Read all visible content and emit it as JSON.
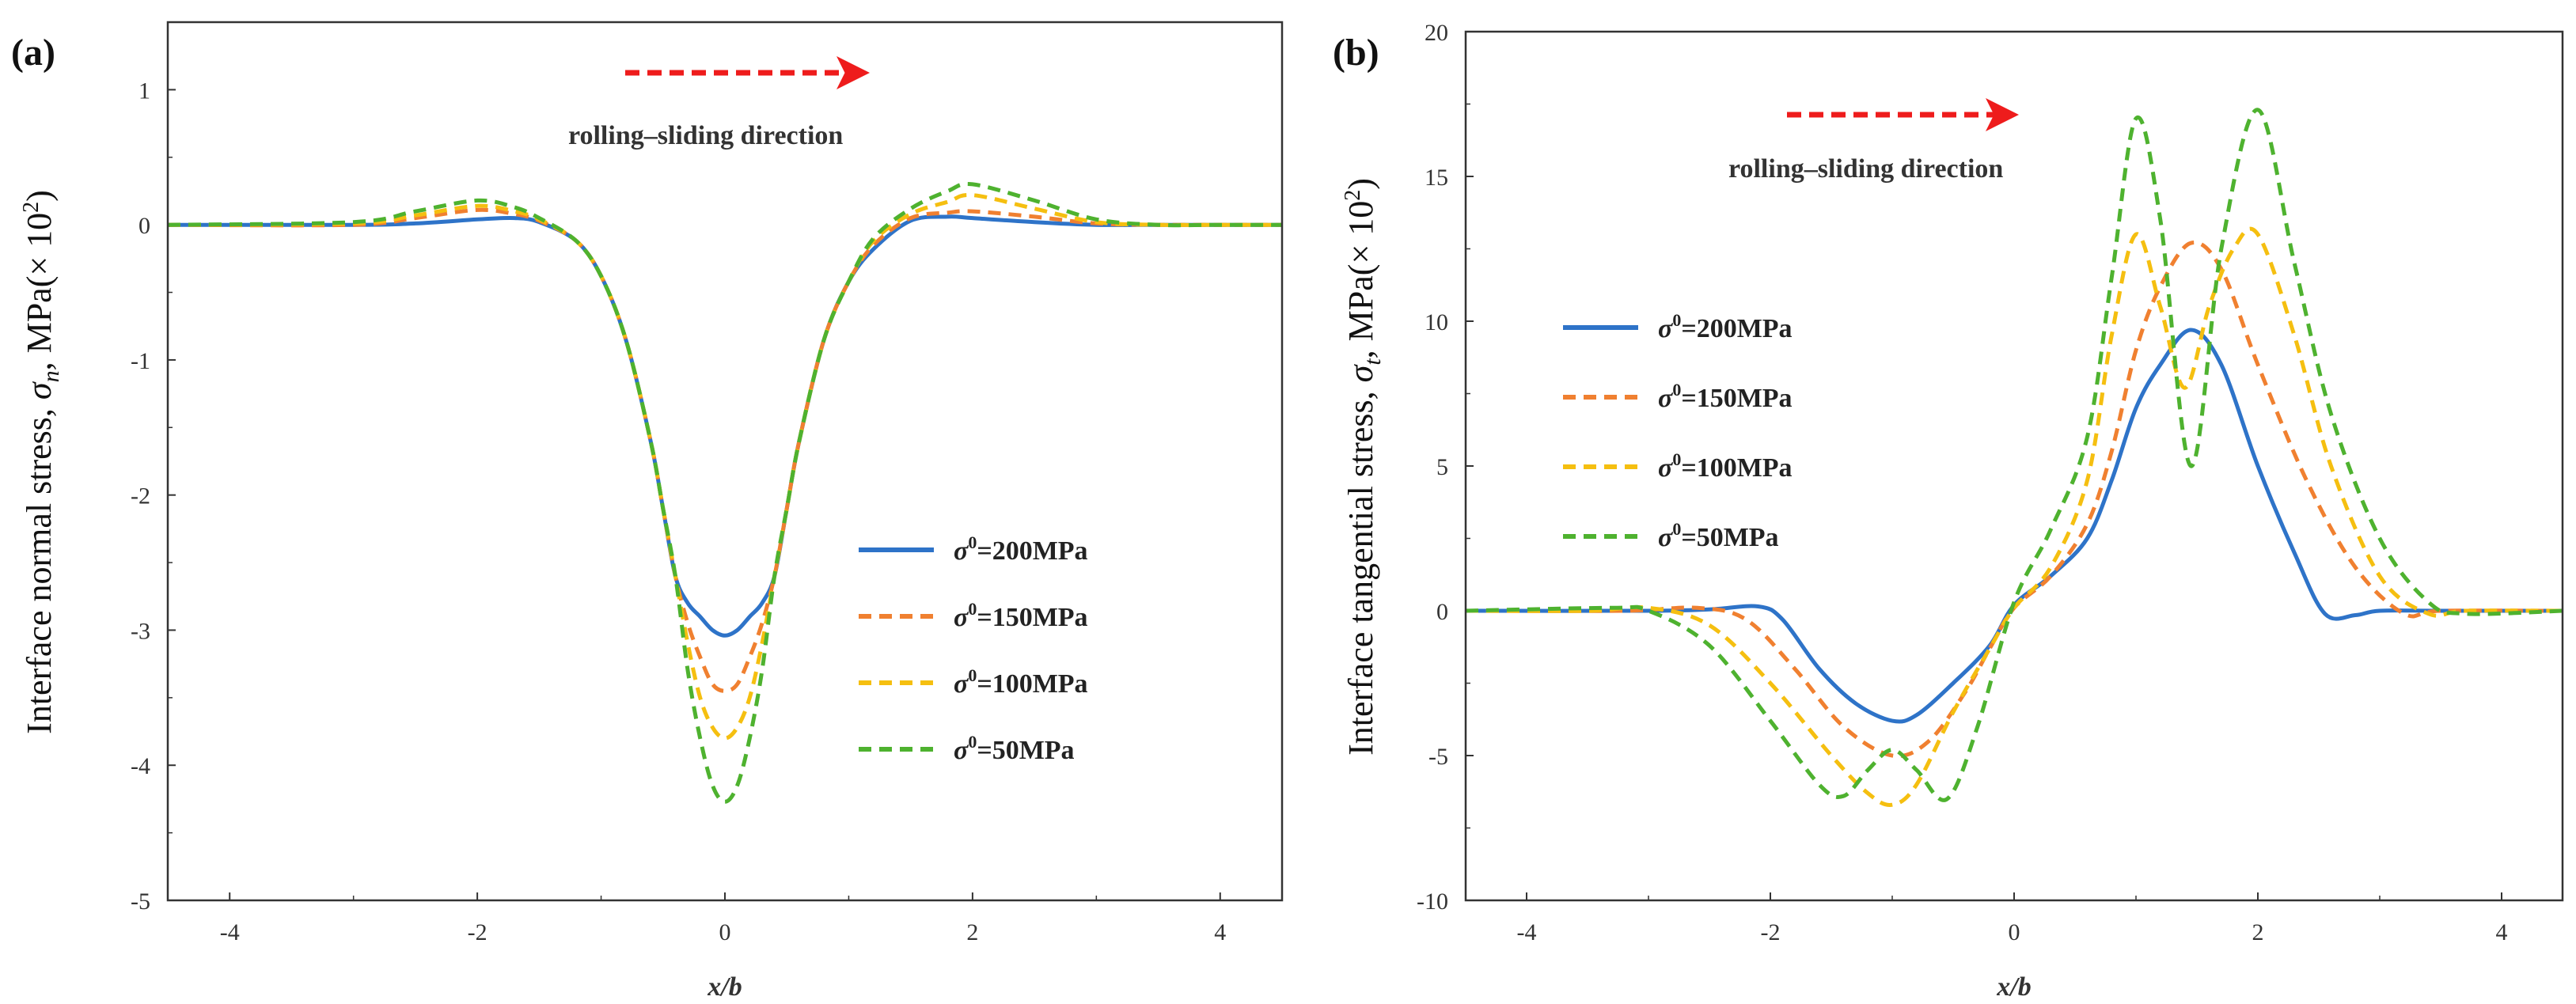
{
  "colors": {
    "s200": "#2E73C8",
    "s150": "#F08030",
    "s100": "#F5BF10",
    "s50": "#4EB22F",
    "arrow": "#EE1C1C",
    "axis": "#333333"
  },
  "chart_data": [
    {
      "type": "line",
      "panel_label": "(a)",
      "title": "",
      "xlabel": "x/b",
      "ylabel": "Interface normal stress,  σn,  MPa(× 10²)",
      "ylabel_parts": {
        "pre": "Interface normal stress,  ",
        "sym": "σ",
        "sub": "n",
        "post": ",  MPa(× 10",
        "exp": "2",
        "close": ")"
      },
      "xlim": [
        -4.5,
        4.5
      ],
      "ylim": [
        -5,
        1.5
      ],
      "xticks": [
        "-4",
        "-2",
        "0",
        "2",
        "4"
      ],
      "xtick_values": [
        -4,
        -2,
        0,
        2,
        4
      ],
      "yticks": [
        "-5",
        "-4",
        "-3",
        "-2",
        "-1",
        "0",
        "1"
      ],
      "ytick_values": [
        -5,
        -4,
        -3,
        -2,
        -1,
        0,
        1
      ],
      "annotation": "rolling–sliding direction",
      "legend_position": "center-right",
      "series": [
        {
          "name": "σ0=200MPa",
          "name_parts": [
            "σ",
            "0",
            "=200MPa"
          ],
          "color_key": "s200",
          "dash": "solid",
          "x": [
            -4.5,
            -3,
            -2.5,
            -2,
            -1.7,
            -1.5,
            -1.2,
            -1,
            -0.8,
            -0.6,
            -0.5,
            -0.4,
            -0.3,
            -0.2,
            -0.1,
            0,
            0.1,
            0.2,
            0.3,
            0.4,
            0.5,
            0.6,
            0.8,
            1,
            1.2,
            1.5,
            1.8,
            2,
            2.5,
            3,
            3.5,
            4,
            4.5
          ],
          "y": [
            0,
            0,
            0.01,
            0.04,
            0.05,
            0.02,
            -0.12,
            -0.38,
            -0.85,
            -1.6,
            -2.1,
            -2.6,
            -2.8,
            -2.9,
            -3.0,
            -3.04,
            -3.0,
            -2.9,
            -2.8,
            -2.6,
            -2.1,
            -1.6,
            -0.85,
            -0.42,
            -0.18,
            0.03,
            0.06,
            0.05,
            0.02,
            0,
            0,
            0,
            0
          ]
        },
        {
          "name": "σ0=150MPa",
          "name_parts": [
            "σ",
            "0",
            "=150MPa"
          ],
          "color_key": "s150",
          "dash": "dashed",
          "x": [
            -4.5,
            -3,
            -2.5,
            -2,
            -1.7,
            -1.5,
            -1.2,
            -1,
            -0.8,
            -0.6,
            -0.5,
            -0.4,
            -0.3,
            -0.2,
            -0.1,
            0,
            0.1,
            0.2,
            0.3,
            0.4,
            0.5,
            0.6,
            0.8,
            1,
            1.2,
            1.5,
            1.8,
            2,
            2.5,
            3,
            3.5,
            4,
            4.5
          ],
          "y": [
            0,
            0,
            0.05,
            0.11,
            0.08,
            0.03,
            -0.12,
            -0.38,
            -0.85,
            -1.6,
            -2.1,
            -2.6,
            -2.95,
            -3.2,
            -3.4,
            -3.45,
            -3.4,
            -3.2,
            -2.95,
            -2.6,
            -2.1,
            -1.6,
            -0.85,
            -0.42,
            -0.15,
            0.05,
            0.09,
            0.1,
            0.06,
            0.01,
            0,
            0,
            0
          ]
        },
        {
          "name": "σ0=100MPa",
          "name_parts": [
            "σ",
            "0",
            "=100MPa"
          ],
          "color_key": "s100",
          "dash": "dashed",
          "x": [
            -4.5,
            -3,
            -2.5,
            -2,
            -1.7,
            -1.5,
            -1.2,
            -1,
            -0.8,
            -0.6,
            -0.5,
            -0.4,
            -0.3,
            -0.2,
            -0.1,
            0,
            0.1,
            0.2,
            0.3,
            0.4,
            0.5,
            0.6,
            0.8,
            1,
            1.2,
            1.5,
            1.8,
            2,
            2.5,
            3,
            3.5,
            4,
            4.5
          ],
          "y": [
            0,
            0.01,
            0.07,
            0.14,
            0.1,
            0.04,
            -0.12,
            -0.38,
            -0.85,
            -1.6,
            -2.1,
            -2.6,
            -3.1,
            -3.5,
            -3.72,
            -3.8,
            -3.72,
            -3.5,
            -3.1,
            -2.6,
            -2.1,
            -1.6,
            -0.85,
            -0.42,
            -0.12,
            0.08,
            0.17,
            0.22,
            0.12,
            0.02,
            0,
            0,
            0
          ]
        },
        {
          "name": "σ0=50MPa",
          "name_parts": [
            "σ",
            "0",
            "=50MPa"
          ],
          "color_key": "s50",
          "dash": "dashed",
          "x": [
            -4.5,
            -3,
            -2.5,
            -2,
            -1.7,
            -1.5,
            -1.2,
            -1,
            -0.8,
            -0.6,
            -0.5,
            -0.4,
            -0.3,
            -0.2,
            -0.1,
            0,
            0.1,
            0.2,
            0.3,
            0.4,
            0.5,
            0.6,
            0.8,
            1,
            1.2,
            1.5,
            1.8,
            2,
            2.5,
            3,
            3.5,
            4,
            4.5
          ],
          "y": [
            0,
            0.02,
            0.1,
            0.18,
            0.13,
            0.05,
            -0.12,
            -0.38,
            -0.85,
            -1.6,
            -2.1,
            -2.6,
            -3.3,
            -3.8,
            -4.15,
            -4.27,
            -4.15,
            -3.8,
            -3.3,
            -2.6,
            -2.1,
            -1.6,
            -0.85,
            -0.42,
            -0.1,
            0.12,
            0.25,
            0.3,
            0.18,
            0.04,
            0,
            0,
            0
          ]
        }
      ]
    },
    {
      "type": "line",
      "panel_label": "(b)",
      "title": "",
      "xlabel": "x/b",
      "ylabel": "Interface tangential stress,  σt,  MPa(× 10²)",
      "ylabel_parts": {
        "pre": "Interface tangential stress,  ",
        "sym": "σ",
        "sub": "t",
        "post": ",  MPa(× 10",
        "exp": "2",
        "close": ")"
      },
      "xlim": [
        -4.5,
        4.5
      ],
      "ylim": [
        -10,
        20
      ],
      "xticks": [
        "-4",
        "-2",
        "0",
        "2",
        "4"
      ],
      "xtick_values": [
        -4,
        -2,
        0,
        2,
        4
      ],
      "yticks": [
        "-10",
        "-5",
        "0",
        "5",
        "10",
        "15",
        "20"
      ],
      "ytick_values": [
        -10,
        -5,
        0,
        5,
        10,
        15,
        20
      ],
      "annotation": "rolling–sliding direction",
      "legend_position": "upper-left",
      "series": [
        {
          "name": "σ0=200MPa",
          "name_parts": [
            "σ",
            "0",
            "=200MPa"
          ],
          "color_key": "s200",
          "dash": "solid",
          "x": [
            -4.5,
            -3,
            -2.5,
            -2.1,
            -1.9,
            -1.6,
            -1.3,
            -1,
            -0.8,
            -0.5,
            -0.2,
            0,
            0.3,
            0.6,
            0.8,
            1,
            1.2,
            1.45,
            1.7,
            2,
            2.3,
            2.55,
            2.8,
            3,
            3.5,
            4.5
          ],
          "y": [
            0,
            0,
            0.05,
            0.15,
            -0.3,
            -2.0,
            -3.2,
            -3.8,
            -3.6,
            -2.5,
            -1.2,
            0.2,
            1.2,
            2.5,
            4.5,
            7.0,
            8.5,
            9.7,
            8.5,
            5.0,
            2.0,
            -0.1,
            -0.15,
            0,
            0,
            0
          ]
        },
        {
          "name": "σ0=150MPa",
          "name_parts": [
            "σ",
            "0",
            "=150MPa"
          ],
          "color_key": "s150",
          "dash": "dashed",
          "x": [
            -4.5,
            -3.2,
            -2.6,
            -2.2,
            -1.8,
            -1.4,
            -1,
            -0.7,
            -0.4,
            -0.2,
            0,
            0.3,
            0.6,
            0.8,
            1,
            1.2,
            1.45,
            1.7,
            2,
            2.4,
            2.8,
            3.2,
            3.5,
            4.5
          ],
          "y": [
            0,
            0,
            0.1,
            -0.3,
            -2.0,
            -4.0,
            -5.0,
            -4.5,
            -2.8,
            -1.3,
            0.1,
            1.2,
            3.0,
            5.5,
            9.0,
            11.2,
            12.7,
            11.8,
            8.5,
            4.5,
            1.5,
            -0.1,
            0,
            0
          ]
        },
        {
          "name": "σ0=100MPa",
          "name_parts": [
            "σ",
            "0",
            "=100MPa"
          ],
          "color_key": "s100",
          "dash": "dashed",
          "x": [
            -4.5,
            -3.5,
            -3,
            -2.5,
            -2,
            -1.5,
            -1.2,
            -1,
            -0.8,
            -0.5,
            -0.2,
            0,
            0.3,
            0.6,
            0.8,
            1,
            1.2,
            1.4,
            1.6,
            1.8,
            2,
            2.3,
            2.6,
            3,
            3.4,
            3.7,
            4.5
          ],
          "y": [
            0,
            0,
            0.1,
            -0.5,
            -2.5,
            -5.0,
            -6.3,
            -6.7,
            -6.0,
            -3.5,
            -1.3,
            0.1,
            1.5,
            4.5,
            9.5,
            13.0,
            10.5,
            7.7,
            10.5,
            12.5,
            13.0,
            9.5,
            5.0,
            1.2,
            -0.1,
            0,
            0
          ]
        },
        {
          "name": "σ0=50MPa",
          "name_parts": [
            "σ",
            "0",
            "=50MPa"
          ],
          "color_key": "s50",
          "dash": "dashed",
          "x": [
            -4.5,
            -3.3,
            -3,
            -2.5,
            -2,
            -1.6,
            -1.4,
            -1.2,
            -1,
            -0.8,
            -0.55,
            -0.3,
            0,
            0.3,
            0.6,
            0.8,
            1,
            1.2,
            1.45,
            1.7,
            2,
            2.3,
            2.6,
            3,
            3.4,
            3.7,
            4.5
          ],
          "y": [
            0,
            0.1,
            0,
            -1.2,
            -3.8,
            -6.0,
            -6.4,
            -5.5,
            -4.8,
            -5.5,
            -6.5,
            -4.0,
            0.3,
            2.8,
            6.0,
            11.5,
            17.0,
            13.5,
            5.0,
            12.5,
            17.3,
            12.0,
            6.8,
            2.5,
            0.3,
            -0.1,
            0
          ]
        }
      ]
    }
  ]
}
